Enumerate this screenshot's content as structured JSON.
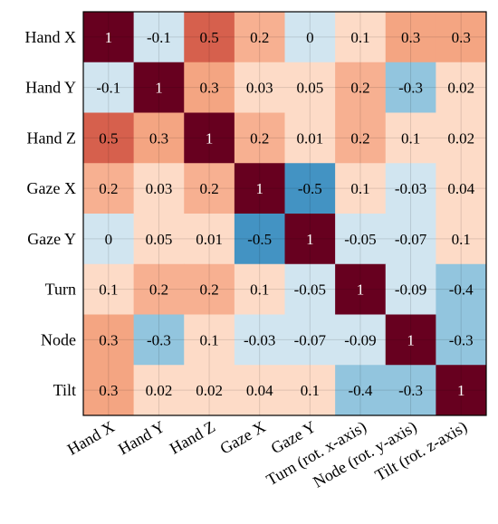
{
  "chart_data": {
    "type": "heatmap",
    "title": "",
    "xlabel": "",
    "ylabel": "",
    "row_labels": [
      "Hand X",
      "Hand Y",
      "Hand Z",
      "Gaze X",
      "Gaze Y",
      "Turn",
      "Node",
      "Tilt"
    ],
    "col_labels": [
      "Hand X",
      "Hand Y",
      "Hand Z",
      "Gaze X",
      "Gaze Y",
      "Turn (rot. x-axis)",
      "Node (rot. y-axis)",
      "Tilt (rot. z-axis)"
    ],
    "values": [
      [
        1,
        -0.1,
        0.5,
        0.2,
        0,
        0.1,
        0.3,
        0.3
      ],
      [
        -0.1,
        1,
        0.3,
        0.03,
        0.05,
        0.2,
        -0.3,
        0.02
      ],
      [
        0.5,
        0.3,
        1,
        0.2,
        0.01,
        0.2,
        0.1,
        0.02
      ],
      [
        0.2,
        0.03,
        0.2,
        1,
        -0.5,
        0.1,
        -0.03,
        0.04
      ],
      [
        0,
        0.05,
        0.01,
        -0.5,
        1,
        -0.05,
        -0.07,
        0.1
      ],
      [
        0.1,
        0.2,
        0.2,
        0.1,
        -0.05,
        1,
        -0.09,
        -0.4
      ],
      [
        0.3,
        -0.3,
        0.1,
        -0.03,
        -0.07,
        -0.09,
        1,
        -0.3
      ],
      [
        0.3,
        0.02,
        0.02,
        0.04,
        0.1,
        -0.4,
        -0.3,
        1
      ]
    ],
    "value_labels": [
      [
        "1",
        "-0.1",
        "0.5",
        "0.2",
        "0",
        "0.1",
        "0.3",
        "0.3"
      ],
      [
        "-0.1",
        "1",
        "0.3",
        "0.03",
        "0.05",
        "0.2",
        "-0.3",
        "0.02"
      ],
      [
        "0.5",
        "0.3",
        "1",
        "0.2",
        "0.01",
        "0.2",
        "0.1",
        "0.02"
      ],
      [
        "0.2",
        "0.03",
        "0.2",
        "1",
        "-0.5",
        "0.1",
        "-0.03",
        "0.04"
      ],
      [
        "0",
        "0.05",
        "0.01",
        "-0.5",
        "1",
        "-0.05",
        "-0.07",
        "0.1"
      ],
      [
        "0.1",
        "0.2",
        "0.2",
        "0.1",
        "-0.05",
        "1",
        "-0.09",
        "-0.4"
      ],
      [
        "0.3",
        "-0.3",
        "0.1",
        "-0.03",
        "-0.07",
        "-0.09",
        "1",
        "-0.3"
      ],
      [
        "0.3",
        "0.02",
        "0.02",
        "0.04",
        "0.1",
        "-0.4",
        "-0.3",
        "1"
      ]
    ],
    "colormap": "diverging blue-red",
    "colors": {
      "one": "#67001f",
      "pos_0_5": "#d6604d",
      "pos_0_3": "#f4a582",
      "pos_0_2": "#f7b091",
      "pos_small": "#fddbc7",
      "zero": "#d1e5f0",
      "neg_small": "#d1e5f0",
      "neg_0_3": "#92c5de",
      "neg_0_5": "#4393c3"
    },
    "grid": true,
    "legend": "none"
  }
}
